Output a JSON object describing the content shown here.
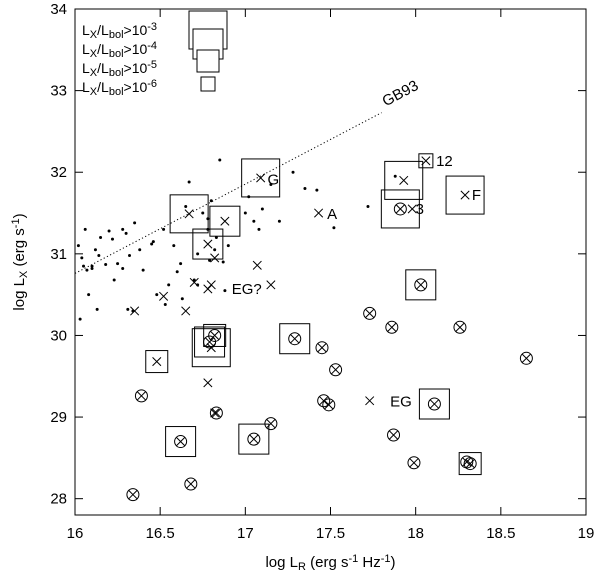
{
  "chart_data": {
    "type": "scatter",
    "xlabel": "log L_R (erg s^-1 Hz^-1)",
    "ylabel": "log L_X (erg s^-1)",
    "xlim": [
      16,
      19
    ],
    "ylim": [
      27.8,
      34
    ],
    "xticks": [
      "16",
      "16.5",
      "17",
      "17.5",
      "18",
      "18.5",
      "19"
    ],
    "yticks": [
      "28",
      "29",
      "30",
      "31",
      "32",
      "33",
      "34"
    ],
    "xlabel_parts": [
      "log L",
      "R",
      " (erg s",
      "-1",
      " Hz",
      "-1",
      ")"
    ],
    "ylabel_parts": [
      "log L",
      "X",
      " (erg s",
      "-1",
      ")"
    ],
    "legend": [
      {
        "label": "LX/Lbol>10^-3",
        "parts": [
          "L",
          "X",
          "/L",
          "bol",
          ">10",
          "-3"
        ],
        "ratio_exp": -3
      },
      {
        "label": "LX/Lbol>10^-4",
        "parts": [
          "L",
          "X",
          "/L",
          "bol",
          ">10",
          "-4"
        ],
        "ratio_exp": -4
      },
      {
        "label": "LX/Lbol>10^-5",
        "parts": [
          "L",
          "X",
          "/L",
          "bol",
          ">10",
          "-5"
        ],
        "ratio_exp": -5
      },
      {
        "label": "LX/Lbol>10^-6",
        "parts": [
          "L",
          "X",
          "/L",
          "bol",
          ">10",
          "-6"
        ],
        "ratio_exp": -6
      }
    ],
    "relation": {
      "label": "GB93",
      "x": [
        16,
        17.8
      ],
      "y": [
        30.76,
        32.73
      ]
    },
    "annotations": [
      {
        "text": "G",
        "x": 17.13,
        "y": 31.91
      },
      {
        "text": "A",
        "x": 17.48,
        "y": 31.49
      },
      {
        "text": "3",
        "x": 18.0,
        "y": 31.55
      },
      {
        "text": "12",
        "x": 18.12,
        "y": 32.14
      },
      {
        "text": "F",
        "x": 18.33,
        "y": 31.72
      },
      {
        "text": "EG?",
        "x": 16.92,
        "y": 30.57
      },
      {
        "text": "EG",
        "x": 17.85,
        "y": 29.19
      }
    ],
    "series": [
      {
        "name": "dots",
        "marker": "dot",
        "points": [
          [
            16.02,
            31.1
          ],
          [
            16.04,
            30.95
          ],
          [
            16.05,
            30.85
          ],
          [
            16.06,
            31.3
          ],
          [
            16.07,
            30.8
          ],
          [
            16.08,
            30.5
          ],
          [
            16.1,
            30.82
          ],
          [
            16.1,
            30.85
          ],
          [
            16.12,
            31.05
          ],
          [
            16.13,
            30.32
          ],
          [
            16.14,
            30.98
          ],
          [
            16.15,
            31.2
          ],
          [
            16.18,
            30.87
          ],
          [
            16.2,
            31.28
          ],
          [
            16.22,
            31.18
          ],
          [
            16.23,
            30.68
          ],
          [
            16.25,
            30.88
          ],
          [
            16.28,
            31.3
          ],
          [
            16.28,
            30.82
          ],
          [
            16.3,
            31.25
          ],
          [
            16.31,
            30.32
          ],
          [
            16.32,
            30.98
          ],
          [
            16.34,
            30.3
          ],
          [
            16.35,
            31.38
          ],
          [
            16.38,
            31.05
          ],
          [
            16.4,
            30.8
          ],
          [
            16.45,
            31.12
          ],
          [
            16.46,
            31.15
          ],
          [
            16.48,
            30.5
          ],
          [
            16.52,
            31.3
          ],
          [
            16.53,
            30.38
          ],
          [
            16.55,
            30.62
          ],
          [
            16.58,
            31.1
          ],
          [
            16.6,
            30.78
          ],
          [
            16.62,
            30.88
          ],
          [
            16.63,
            30.45
          ],
          [
            16.65,
            31.58
          ],
          [
            16.67,
            31.88
          ],
          [
            16.7,
            30.68
          ],
          [
            16.72,
            31.0
          ],
          [
            16.72,
            30.62
          ],
          [
            16.75,
            31.5
          ],
          [
            16.78,
            31.43
          ],
          [
            16.78,
            31.3
          ],
          [
            16.79,
            30.92
          ],
          [
            16.8,
            31.65
          ],
          [
            16.82,
            31.05
          ],
          [
            16.83,
            31.2
          ],
          [
            16.85,
            32.15
          ],
          [
            16.87,
            30.9
          ],
          [
            16.88,
            30.55
          ],
          [
            16.9,
            31.1
          ],
          [
            17.0,
            31.5
          ],
          [
            17.02,
            31.7
          ],
          [
            17.05,
            31.4
          ],
          [
            17.08,
            31.3
          ],
          [
            17.1,
            31.55
          ],
          [
            17.15,
            31.85
          ],
          [
            17.2,
            31.4
          ],
          [
            17.28,
            32.0
          ],
          [
            17.35,
            31.8
          ],
          [
            17.42,
            31.78
          ],
          [
            17.52,
            31.32
          ],
          [
            17.72,
            31.58
          ],
          [
            17.88,
            31.95
          ],
          [
            16.03,
            30.2
          ]
        ]
      },
      {
        "name": "crosses",
        "marker": "x",
        "points": [
          [
            16.35,
            30.3
          ],
          [
            16.52,
            30.48
          ],
          [
            16.65,
            30.3
          ],
          [
            16.7,
            30.65
          ],
          [
            16.78,
            30.57
          ],
          [
            16.8,
            30.62
          ],
          [
            16.82,
            30.95
          ],
          [
            16.78,
            29.42
          ],
          [
            16.82,
            29.05
          ],
          [
            17.07,
            30.86
          ],
          [
            17.15,
            30.62
          ],
          [
            17.43,
            31.5
          ],
          [
            17.98,
            31.55
          ],
          [
            17.73,
            29.2
          ]
        ]
      },
      {
        "name": "circled crosses",
        "marker": "circled-x",
        "points": [
          [
            16.34,
            28.05
          ],
          [
            16.39,
            29.26
          ],
          [
            16.68,
            28.18
          ],
          [
            16.83,
            29.05
          ],
          [
            17.15,
            28.92
          ],
          [
            17.45,
            29.85
          ],
          [
            17.46,
            29.2
          ],
          [
            17.53,
            29.58
          ],
          [
            17.73,
            30.27
          ],
          [
            17.86,
            30.1
          ],
          [
            17.87,
            28.78
          ],
          [
            17.99,
            28.44
          ],
          [
            18.26,
            30.1
          ],
          [
            18.3,
            28.45
          ],
          [
            18.65,
            29.72
          ],
          [
            17.49,
            29.15
          ]
        ]
      }
    ],
    "boxes": [
      {
        "x": 16.48,
        "y": 29.68,
        "ratio_exp": -5,
        "marker": "x"
      },
      {
        "x": 16.62,
        "y": 28.7,
        "ratio_exp": -4,
        "marker": "circled-x"
      },
      {
        "x": 16.67,
        "y": 31.49,
        "ratio_exp": -3,
        "marker": "x"
      },
      {
        "x": 16.78,
        "y": 31.12,
        "ratio_exp": -4,
        "marker": "x"
      },
      {
        "x": 16.88,
        "y": 31.4,
        "ratio_exp": -4,
        "marker": "x"
      },
      {
        "x": 16.79,
        "y": 29.92,
        "ratio_exp": -4,
        "marker": "circled-x"
      },
      {
        "x": 16.8,
        "y": 29.85,
        "ratio_exp": -3,
        "marker": "x"
      },
      {
        "x": 16.82,
        "y": 30.0,
        "ratio_exp": -5,
        "marker": "circled-x"
      },
      {
        "x": 17.09,
        "y": 31.93,
        "ratio_exp": -3,
        "marker": "x"
      },
      {
        "x": 17.05,
        "y": 28.73,
        "ratio_exp": -4,
        "marker": "circled-x"
      },
      {
        "x": 17.29,
        "y": 29.96,
        "ratio_exp": -4,
        "marker": "circled-x"
      },
      {
        "x": 17.91,
        "y": 31.55,
        "ratio_exp": -3,
        "marker": "circled-x"
      },
      {
        "x": 17.93,
        "y": 31.9,
        "ratio_exp": -3,
        "marker": "x"
      },
      {
        "x": 18.06,
        "y": 32.14,
        "ratio_exp": -6,
        "marker": "x"
      },
      {
        "x": 18.03,
        "y": 30.62,
        "ratio_exp": -4,
        "marker": "circled-x"
      },
      {
        "x": 18.11,
        "y": 29.16,
        "ratio_exp": -4,
        "marker": "circled-x"
      },
      {
        "x": 18.32,
        "y": 28.43,
        "ratio_exp": -5,
        "marker": "circled-x"
      },
      {
        "x": 18.29,
        "y": 31.72,
        "ratio_exp": -3,
        "marker": "x"
      }
    ]
  }
}
